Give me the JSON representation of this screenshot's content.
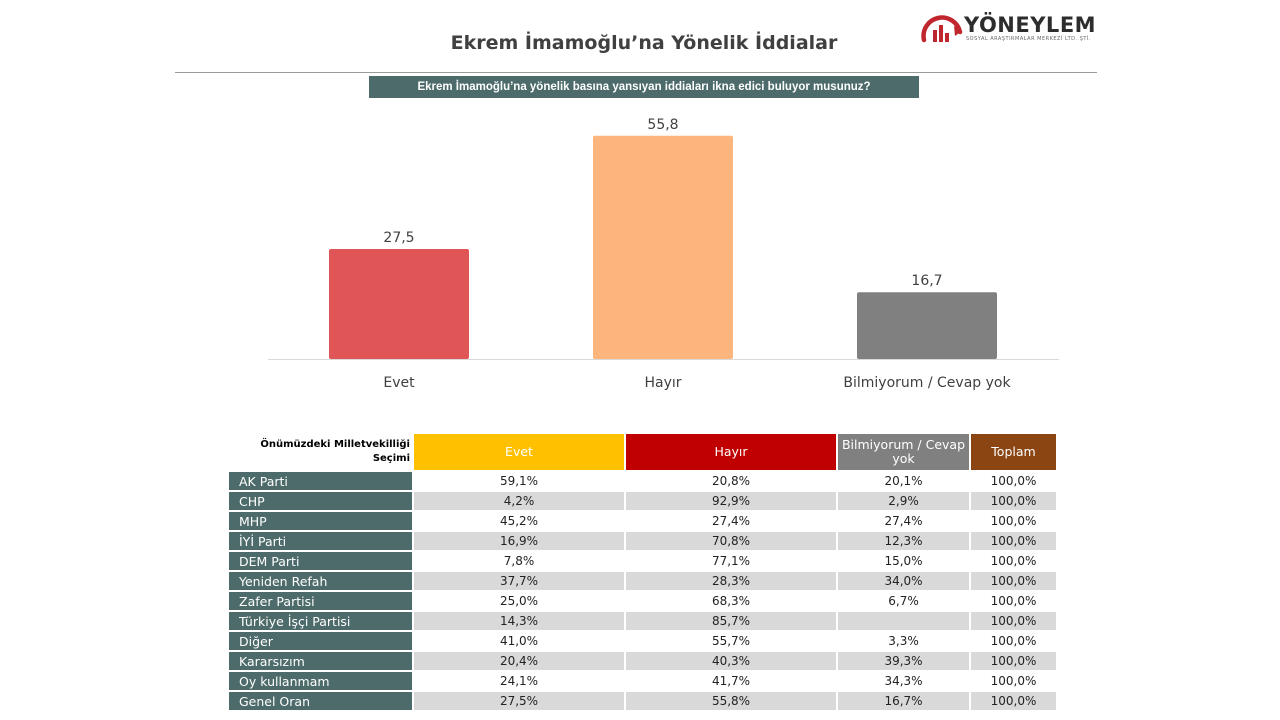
{
  "header": {
    "title": "Ekrem İmamoğlu’na Yönelik İddialar",
    "logo_text": "YÖNEYLEM",
    "logo_subtext": "SOSYAL ARAŞTIRMALAR MERKEZİ LTD. ŞTİ.",
    "question": "Ekrem İmamoğlu’na yönelik basına yansıyan iddiaları ikna edici buluyor musunuz?"
  },
  "colors": {
    "accent": "#4c6b6a",
    "evet": "#e05555",
    "hayir": "#fdb57e",
    "bilmiyorum": "#808080",
    "col_evet": "#ffc000",
    "col_hayir": "#c00000",
    "col_bilmiyorum": "#808080",
    "col_toplam": "#8b4513"
  },
  "chart_data": {
    "type": "bar",
    "categories": [
      "Evet",
      "Hayır",
      "Bilmiyorum / Cevap yok"
    ],
    "values": [
      27.5,
      55.8,
      16.7
    ],
    "value_labels": [
      "27,5",
      "55,8",
      "16,7"
    ],
    "ylim": [
      0,
      60
    ],
    "grid": false,
    "legend": "none"
  },
  "table": {
    "row_header": "Önümüzdeki Milletvekilliği Seçimi",
    "columns": [
      "Evet",
      "Hayır",
      "Bilmiyorum / Cevap yok",
      "Toplam"
    ],
    "rows": [
      {
        "party": "AK Parti",
        "values": [
          "59,1%",
          "20,8%",
          "20,1%",
          "100,0%"
        ]
      },
      {
        "party": "CHP",
        "values": [
          "4,2%",
          "92,9%",
          "2,9%",
          "100,0%"
        ]
      },
      {
        "party": "MHP",
        "values": [
          "45,2%",
          "27,4%",
          "27,4%",
          "100,0%"
        ]
      },
      {
        "party": "İYİ Parti",
        "values": [
          "16,9%",
          "70,8%",
          "12,3%",
          "100,0%"
        ]
      },
      {
        "party": "DEM Parti",
        "values": [
          "7,8%",
          "77,1%",
          "15,0%",
          "100,0%"
        ]
      },
      {
        "party": "Yeniden Refah",
        "values": [
          "37,7%",
          "28,3%",
          "34,0%",
          "100,0%"
        ]
      },
      {
        "party": "Zafer Partisi",
        "values": [
          "25,0%",
          "68,3%",
          "6,7%",
          "100,0%"
        ]
      },
      {
        "party": "Türkiye İşçi Partisi",
        "values": [
          "14,3%",
          "85,7%",
          "",
          "100,0%"
        ]
      },
      {
        "party": "Diğer",
        "values": [
          "41,0%",
          "55,7%",
          "3,3%",
          "100,0%"
        ]
      },
      {
        "party": "Kararsızım",
        "values": [
          "20,4%",
          "40,3%",
          "39,3%",
          "100,0%"
        ]
      },
      {
        "party": "Oy kullanmam",
        "values": [
          "24,1%",
          "41,7%",
          "34,3%",
          "100,0%"
        ]
      },
      {
        "party": "Genel Oran",
        "values": [
          "27,5%",
          "55,8%",
          "16,7%",
          "100,0%"
        ]
      }
    ]
  }
}
